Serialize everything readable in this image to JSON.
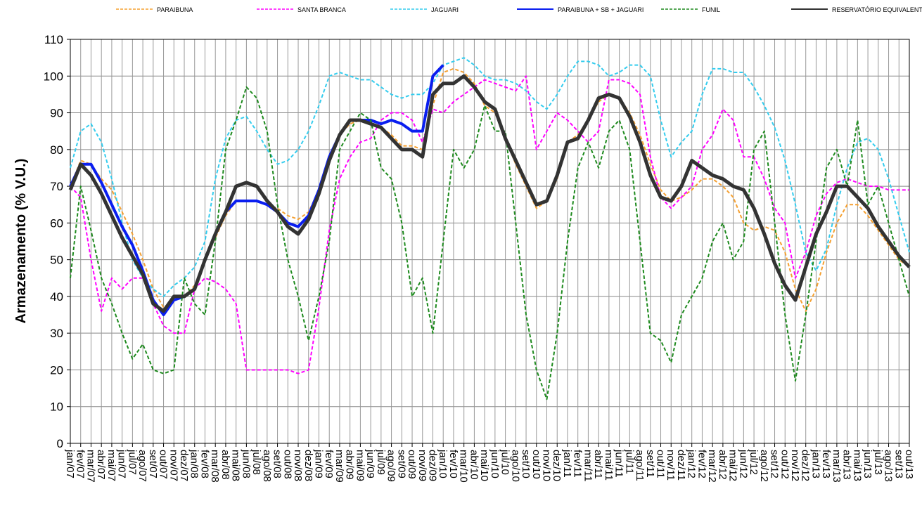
{
  "chart_data": {
    "type": "line",
    "y_label": "Armazenamento (% V.U.)",
    "categories": [
      "jan/07",
      "fev/07",
      "mar/07",
      "abr/07",
      "mai/07",
      "jun/07",
      "jul/07",
      "ago/07",
      "set/07",
      "out/07",
      "nov/07",
      "dez/07",
      "jan/08",
      "fev/08",
      "mar/08",
      "abr/08",
      "mai/08",
      "jun/08",
      "jul/08",
      "ago/08",
      "set/08",
      "out/08",
      "nov/08",
      "dez/08",
      "jan/09",
      "fev/09",
      "mar/09",
      "abr/09",
      "mai/09",
      "jun/09",
      "jul/09",
      "ago/09",
      "set/09",
      "out/09",
      "nov/09",
      "dez/09",
      "jan/10",
      "fev/10",
      "mar/10",
      "abr/10",
      "mai/10",
      "jun/10",
      "jul/10",
      "ago/10",
      "set/10",
      "out/10",
      "nov/10",
      "dez/10",
      "jan/11",
      "fev/11",
      "mar/11",
      "abr/11",
      "mai/11",
      "jun/11",
      "jul/11",
      "ago/11",
      "set/11",
      "out/11",
      "nov/11",
      "dez/11",
      "jan/12",
      "fev/12",
      "mar/12",
      "abr/12",
      "mai/12",
      "jun/12",
      "jul/12",
      "ago/12",
      "set/12",
      "out/12",
      "nov/12",
      "dez/12",
      "jan/13",
      "fev/13",
      "mar/13",
      "abr/13",
      "mai/13",
      "jun/13",
      "jul/13",
      "ago/13",
      "set/13",
      "out/13"
    ],
    "series": [
      {
        "name": "PARAIBUNA",
        "color": "#f5a030",
        "style": "dashed",
        "values": [
          70,
          77,
          76,
          72,
          69,
          63,
          57,
          50,
          42,
          37,
          39,
          40,
          43,
          50,
          56,
          62,
          66,
          66,
          66,
          65,
          64,
          62,
          61,
          63,
          69,
          78,
          84,
          87,
          88,
          87,
          86,
          84,
          81,
          81,
          80,
          92,
          101,
          102,
          101,
          98,
          92,
          90,
          83,
          76,
          70,
          64,
          66,
          72,
          82,
          84,
          88,
          93,
          95,
          94,
          90,
          84,
          76,
          69,
          66,
          67,
          69,
          72,
          72,
          70,
          67,
          60,
          58,
          59,
          58,
          52,
          42,
          36,
          42,
          52,
          60,
          65,
          65,
          62,
          58,
          54,
          50,
          48
        ]
      },
      {
        "name": "SANTA BRANCA",
        "color": "#ff00ff",
        "style": "dashed",
        "values": [
          70,
          67,
          50,
          36,
          45,
          42,
          45,
          45,
          38,
          32,
          30,
          30,
          42,
          45,
          44,
          42,
          38,
          20,
          20,
          20,
          20,
          20,
          19,
          20,
          37,
          58,
          72,
          78,
          82,
          83,
          88,
          90,
          90,
          88,
          82,
          91,
          90,
          93,
          95,
          97,
          99,
          98,
          97,
          96,
          100,
          80,
          85,
          90,
          88,
          85,
          82,
          85,
          99,
          99,
          98,
          95,
          78,
          67,
          64,
          67,
          70,
          80,
          84,
          91,
          88,
          78,
          78,
          72,
          64,
          60,
          45,
          52,
          62,
          68,
          71,
          72,
          71,
          70,
          70,
          69,
          69,
          69
        ]
      },
      {
        "name": "JAGUARI",
        "color": "#33ccee",
        "style": "dashed",
        "values": [
          75,
          85,
          87,
          82,
          72,
          60,
          50,
          45,
          42,
          40,
          43,
          45,
          48,
          55,
          72,
          83,
          88,
          89,
          85,
          80,
          76,
          77,
          80,
          85,
          92,
          100,
          101,
          100,
          99,
          99,
          97,
          95,
          94,
          95,
          95,
          98,
          103,
          104,
          105,
          103,
          100,
          99,
          99,
          98,
          96,
          93,
          91,
          95,
          100,
          104,
          104,
          103,
          100,
          101,
          103,
          103,
          100,
          88,
          78,
          82,
          85,
          95,
          102,
          102,
          101,
          101,
          97,
          92,
          86,
          77,
          65,
          52,
          47,
          53,
          65,
          75,
          82,
          83,
          80,
          72,
          62,
          52
        ]
      },
      {
        "name": "PARAIBUNA + SB + JAGUARI",
        "color": "#0a1ef0",
        "style": "solid",
        "values": [
          70,
          76,
          76,
          71,
          65,
          59,
          54,
          47,
          39,
          35,
          39,
          40,
          42,
          50,
          57,
          63,
          66,
          66,
          66,
          65,
          63,
          60,
          59,
          62,
          69,
          78,
          84,
          88,
          88,
          88,
          87,
          88,
          87,
          85,
          85,
          100,
          103,
          null,
          null,
          null,
          null,
          null,
          null,
          null,
          null,
          null,
          null,
          null,
          null,
          null,
          null,
          null,
          null,
          null,
          null,
          null,
          null,
          null,
          null,
          null,
          null,
          null,
          null,
          null,
          null,
          null,
          null,
          null,
          null,
          null,
          null,
          null,
          null,
          null,
          null,
          null,
          null,
          null,
          null,
          null,
          null,
          null
        ]
      },
      {
        "name": "FUNIL",
        "color": "#1e8a1e",
        "style": "dashed",
        "values": [
          45,
          70,
          58,
          45,
          38,
          30,
          23,
          27,
          20,
          19,
          20,
          45,
          38,
          35,
          55,
          80,
          88,
          97,
          94,
          85,
          65,
          50,
          40,
          28,
          40,
          55,
          80,
          85,
          90,
          88,
          75,
          72,
          60,
          40,
          45,
          30,
          55,
          80,
          75,
          80,
          92,
          85,
          85,
          60,
          35,
          20,
          12,
          30,
          55,
          75,
          82,
          75,
          85,
          88,
          80,
          55,
          30,
          28,
          22,
          35,
          40,
          45,
          55,
          60,
          50,
          55,
          80,
          85,
          60,
          35,
          17,
          35,
          55,
          75,
          80,
          70,
          88,
          65,
          70,
          60,
          50,
          40
        ]
      },
      {
        "name": "RESERVATÓRIO EQUIVALENTE",
        "color": "#333333",
        "style": "solid",
        "values": [
          69,
          76,
          73,
          68,
          62,
          56,
          51,
          46,
          38,
          36,
          40,
          40,
          42,
          50,
          57,
          63,
          70,
          71,
          70,
          66,
          63,
          59,
          57,
          61,
          68,
          77,
          84,
          88,
          88,
          87,
          86,
          83,
          80,
          80,
          78,
          95,
          98,
          98,
          100,
          97,
          93,
          91,
          83,
          77,
          71,
          65,
          66,
          73,
          82,
          83,
          88,
          94,
          95,
          94,
          89,
          82,
          73,
          67,
          66,
          70,
          77,
          75,
          73,
          72,
          70,
          69,
          64,
          57,
          49,
          43,
          39,
          48,
          57,
          63,
          70,
          70,
          67,
          64,
          59,
          55,
          51,
          48
        ]
      }
    ],
    "ylim": [
      0,
      110
    ],
    "yticks": [
      0,
      10,
      20,
      30,
      40,
      50,
      60,
      70,
      80,
      90,
      100,
      110
    ],
    "grid": true,
    "legend": "top"
  }
}
